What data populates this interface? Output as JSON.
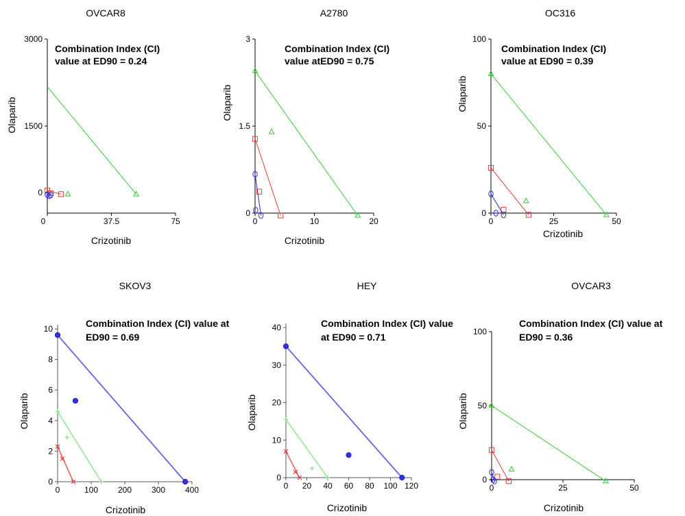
{
  "chart_data": [
    {
      "type": "scatter",
      "title": "OVCAR8",
      "annotation": [
        "Combination Index (CI)",
        "value at  ED90 = 0.24"
      ],
      "xlabel": "Crizotinib",
      "ylabel": "Olaparib",
      "xlim": [
        0,
        75
      ],
      "ylim": [
        -400,
        3000
      ],
      "xticks": [
        "0",
        "37.5",
        "75"
      ],
      "yticks": [
        "0",
        "1500",
        "3000"
      ],
      "grid": false,
      "series": [
        {
          "marker": "triangle",
          "color": "#33cc33",
          "line": [
            [
              0,
              2070
            ],
            [
              52,
              -30
            ]
          ],
          "points": [
            [
              12,
              -30
            ],
            [
              52,
              -30
            ]
          ]
        },
        {
          "marker": "square",
          "color": "#e03c3c",
          "line": [
            [
              0,
              40
            ],
            [
              8,
              -30
            ]
          ],
          "points": [
            [
              0,
              40
            ],
            [
              2,
              -10
            ],
            [
              8,
              -30
            ]
          ]
        },
        {
          "marker": "circle",
          "color": "#2b2bd6",
          "line": [
            [
              0,
              -40
            ],
            [
              2,
              -40
            ]
          ],
          "points": [
            [
              0,
              -40
            ],
            [
              1,
              -60
            ],
            [
              2,
              -50
            ]
          ]
        }
      ]
    },
    {
      "type": "scatter",
      "title": "A2780",
      "annotation": [
        "Combination Index (CI)",
        "value atED90 = 0.75"
      ],
      "xlabel": "Crizotinib",
      "ylabel": "Olaparib",
      "xlim": [
        0,
        20
      ],
      "ylim": [
        0,
        3
      ],
      "xticks": [
        "0",
        "10",
        "20"
      ],
      "yticks": [
        "0",
        "1.5",
        "3"
      ],
      "grid": false,
      "series": [
        {
          "marker": "triangle",
          "color": "#33cc33",
          "line": [
            [
              0,
              2.45
            ],
            [
              17.3,
              -0.04
            ]
          ],
          "points": [
            [
              0,
              2.45
            ],
            [
              2.8,
              1.4
            ],
            [
              17.3,
              -0.04
            ]
          ]
        },
        {
          "marker": "square",
          "color": "#e03c3c",
          "line": [
            [
              0,
              1.28
            ],
            [
              4.3,
              -0.04
            ]
          ],
          "points": [
            [
              0,
              1.28
            ],
            [
              0.7,
              0.37
            ],
            [
              4.3,
              -0.04
            ]
          ]
        },
        {
          "marker": "circle",
          "color": "#2b2bd6",
          "line": [
            [
              0,
              0.67
            ],
            [
              1,
              -0.04
            ]
          ],
          "points": [
            [
              0,
              0.67
            ],
            [
              0.1,
              0.05
            ],
            [
              1,
              -0.04
            ]
          ]
        }
      ]
    },
    {
      "type": "scatter",
      "title": "OC316",
      "annotation": [
        "Combination Index (CI)",
        "value at ED90 = 0.39"
      ],
      "xlabel": "Crizotinib",
      "ylabel": "Olaparib",
      "xlim": [
        0,
        50
      ],
      "ylim": [
        0,
        100
      ],
      "xticks": [
        "0",
        "25",
        "50"
      ],
      "yticks": [
        "0",
        "50",
        "100"
      ],
      "grid": false,
      "series": [
        {
          "marker": "triangle",
          "color": "#33cc33",
          "line": [
            [
              0,
              80
            ],
            [
              46,
              -1
            ]
          ],
          "points": [
            [
              0,
              80
            ],
            [
              14,
              7
            ],
            [
              46,
              -1
            ]
          ]
        },
        {
          "marker": "square",
          "color": "#e03c3c",
          "line": [
            [
              0,
              26
            ],
            [
              15,
              -1
            ]
          ],
          "points": [
            [
              0,
              26
            ],
            [
              5,
              2
            ],
            [
              15,
              -1
            ]
          ]
        },
        {
          "marker": "circle",
          "color": "#2b2bd6",
          "line": [
            [
              0,
              11
            ],
            [
              5,
              -1
            ]
          ],
          "points": [
            [
              0,
              11
            ],
            [
              2,
              0
            ],
            [
              5,
              -1
            ]
          ]
        }
      ]
    },
    {
      "type": "scatter",
      "title": "SKOV3",
      "annotation": [
        "Combination Index (CI) value at",
        "ED90 = 0.69"
      ],
      "xlabel": "Crizotinib",
      "ylabel": "Olaparib",
      "xlim": [
        0,
        400
      ],
      "ylim": [
        0,
        10
      ],
      "xticks": [
        "0",
        "100",
        "200",
        "300",
        "400"
      ],
      "yticks": [
        "0",
        "2",
        "4",
        "6",
        "8",
        "10"
      ],
      "grid": false,
      "series": [
        {
          "marker": "filled-circle",
          "color": "#3030e0",
          "line": [
            [
              0,
              9.6
            ],
            [
              380,
              0
            ]
          ],
          "points": [
            [
              0,
              9.6
            ],
            [
              53,
              5.3
            ],
            [
              380,
              0
            ]
          ]
        },
        {
          "marker": "plus",
          "color": "#7de07d",
          "line": [
            [
              0,
              4.6
            ],
            [
              130,
              0
            ]
          ],
          "points": [
            [
              0,
              4.6
            ],
            [
              28,
              2.9
            ],
            [
              130,
              0
            ]
          ]
        },
        {
          "marker": "x",
          "color": "#e03c3c",
          "line": [
            [
              0,
              2.3
            ],
            [
              47,
              0
            ]
          ],
          "points": [
            [
              0,
              2.3
            ],
            [
              14,
              1.5
            ],
            [
              47,
              0
            ]
          ]
        }
      ]
    },
    {
      "type": "scatter",
      "title": "HEY",
      "annotation": [
        "Combination Index (CI) value",
        "at ED90 = 0.71"
      ],
      "xlabel": "Crizotinib",
      "ylabel": "Olaparib",
      "xlim": [
        0,
        120
      ],
      "ylim": [
        0,
        40
      ],
      "xticks": [
        "0",
        "20",
        "40",
        "60",
        "80",
        "100",
        "120"
      ],
      "yticks": [
        "0",
        "10",
        "20",
        "30",
        "40"
      ],
      "grid": false,
      "series": [
        {
          "marker": "filled-circle",
          "color": "#3030e0",
          "line": [
            [
              0,
              35
            ],
            [
              111,
              0
            ]
          ],
          "points": [
            [
              0,
              35
            ],
            [
              60,
              6
            ],
            [
              111,
              0
            ]
          ]
        },
        {
          "marker": "plus",
          "color": "#7de07d",
          "line": [
            [
              0,
              15.5
            ],
            [
              40,
              0
            ]
          ],
          "points": [
            [
              0,
              15.5
            ],
            [
              25,
              2.5
            ],
            [
              40,
              0
            ]
          ]
        },
        {
          "marker": "x",
          "color": "#e03c3c",
          "line": [
            [
              0,
              7
            ],
            [
              13,
              0
            ]
          ],
          "points": [
            [
              0,
              7
            ],
            [
              9,
              1.5
            ],
            [
              13,
              0
            ]
          ]
        }
      ]
    },
    {
      "type": "scatter",
      "title": "OVCAR3",
      "annotation": [
        "Combination Index (CI) value at",
        "ED90 = 0.36"
      ],
      "xlabel": "Crizotinib",
      "ylabel": "Olaparib",
      "xlim": [
        0,
        50
      ],
      "ylim": [
        0,
        100
      ],
      "xticks": [
        "0",
        "25",
        "50"
      ],
      "yticks": [
        "0",
        "50",
        "100"
      ],
      "grid": false,
      "series": [
        {
          "marker": "triangle",
          "color": "#33cc33",
          "line": [
            [
              0,
              50
            ],
            [
              40,
              -1
            ]
          ],
          "points": [
            [
              0,
              50
            ],
            [
              7,
              7
            ],
            [
              40,
              -1
            ]
          ]
        },
        {
          "marker": "square",
          "color": "#e03c3c",
          "line": [
            [
              0,
              20
            ],
            [
              6,
              -1
            ]
          ],
          "points": [
            [
              0,
              20
            ],
            [
              2,
              2
            ],
            [
              6,
              -1
            ]
          ]
        },
        {
          "marker": "circle",
          "color": "#2b2bd6",
          "line": [
            [
              0,
              5
            ],
            [
              1,
              -1
            ]
          ],
          "points": [
            [
              0,
              5
            ],
            [
              0.5,
              0
            ],
            [
              1,
              -1
            ]
          ]
        }
      ]
    }
  ]
}
